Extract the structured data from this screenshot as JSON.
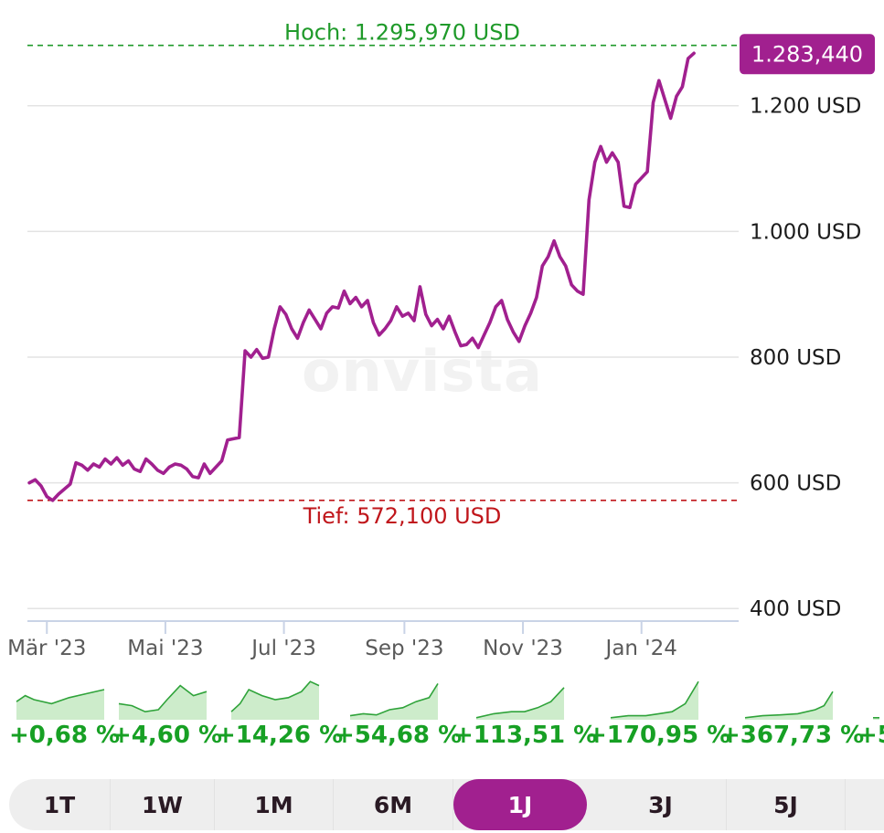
{
  "chart_data": {
    "type": "line",
    "currency": "USD",
    "y_ticks": [
      "400 USD",
      "600 USD",
      "800 USD",
      "1.000 USD",
      "1.200 USD"
    ],
    "y_tick_values": [
      400,
      600,
      800,
      1000,
      1200
    ],
    "ylim": [
      380,
      1310
    ],
    "x_ticks": [
      "Mär '23",
      "Mai '23",
      "Jul '23",
      "Sep '23",
      "Nov '23",
      "Jan '24"
    ],
    "x_tick_dates": [
      "2023-03-01",
      "2023-05-01",
      "2023-07-01",
      "2023-09-01",
      "2023-11-01",
      "2024-01-01"
    ],
    "x_range": [
      "2023-02-19",
      "2024-02-20"
    ],
    "high_label": "Hoch: 1.295,970 USD",
    "high_value": 1295.97,
    "low_label": "Tief: 572,100 USD",
    "low_value": 572.1,
    "last_label": "1.283,440",
    "last_value": 1283.44,
    "watermark": "onvista",
    "line_color": "#a1208f",
    "high_color": "#1f9a2a",
    "low_color": "#c0161b",
    "points": [
      [
        "2023-02-20",
        600
      ],
      [
        "2023-02-23",
        605
      ],
      [
        "2023-02-26",
        595
      ],
      [
        "2023-03-01",
        578
      ],
      [
        "2023-03-04",
        572
      ],
      [
        "2023-03-07",
        582
      ],
      [
        "2023-03-10",
        590
      ],
      [
        "2023-03-13",
        598
      ],
      [
        "2023-03-16",
        632
      ],
      [
        "2023-03-19",
        628
      ],
      [
        "2023-03-22",
        620
      ],
      [
        "2023-03-25",
        630
      ],
      [
        "2023-03-28",
        625
      ],
      [
        "2023-03-31",
        638
      ],
      [
        "2023-04-03",
        630
      ],
      [
        "2023-04-06",
        640
      ],
      [
        "2023-04-09",
        628
      ],
      [
        "2023-04-12",
        635
      ],
      [
        "2023-04-15",
        622
      ],
      [
        "2023-04-18",
        618
      ],
      [
        "2023-04-21",
        638
      ],
      [
        "2023-04-24",
        630
      ],
      [
        "2023-04-27",
        620
      ],
      [
        "2023-04-30",
        615
      ],
      [
        "2023-05-03",
        625
      ],
      [
        "2023-05-06",
        630
      ],
      [
        "2023-05-09",
        628
      ],
      [
        "2023-05-12",
        622
      ],
      [
        "2023-05-15",
        610
      ],
      [
        "2023-05-18",
        608
      ],
      [
        "2023-05-21",
        630
      ],
      [
        "2023-05-24",
        615
      ],
      [
        "2023-05-27",
        625
      ],
      [
        "2023-05-30",
        635
      ],
      [
        "2023-06-02",
        668
      ],
      [
        "2023-06-05",
        670
      ],
      [
        "2023-06-08",
        672
      ],
      [
        "2023-06-11",
        810
      ],
      [
        "2023-06-14",
        800
      ],
      [
        "2023-06-17",
        812
      ],
      [
        "2023-06-20",
        798
      ],
      [
        "2023-06-23",
        800
      ],
      [
        "2023-06-26",
        845
      ],
      [
        "2023-06-29",
        880
      ],
      [
        "2023-07-02",
        868
      ],
      [
        "2023-07-05",
        845
      ],
      [
        "2023-07-08",
        830
      ],
      [
        "2023-07-11",
        855
      ],
      [
        "2023-07-14",
        875
      ],
      [
        "2023-07-17",
        860
      ],
      [
        "2023-07-20",
        845
      ],
      [
        "2023-07-23",
        870
      ],
      [
        "2023-07-26",
        880
      ],
      [
        "2023-07-29",
        878
      ],
      [
        "2023-08-01",
        905
      ],
      [
        "2023-08-04",
        885
      ],
      [
        "2023-08-07",
        895
      ],
      [
        "2023-08-10",
        880
      ],
      [
        "2023-08-13",
        890
      ],
      [
        "2023-08-16",
        855
      ],
      [
        "2023-08-19",
        835
      ],
      [
        "2023-08-22",
        845
      ],
      [
        "2023-08-25",
        858
      ],
      [
        "2023-08-28",
        880
      ],
      [
        "2023-08-31",
        865
      ],
      [
        "2023-09-03",
        870
      ],
      [
        "2023-09-06",
        858
      ],
      [
        "2023-09-09",
        912
      ],
      [
        "2023-09-12",
        868
      ],
      [
        "2023-09-15",
        850
      ],
      [
        "2023-09-18",
        860
      ],
      [
        "2023-09-21",
        845
      ],
      [
        "2023-09-24",
        865
      ],
      [
        "2023-09-27",
        840
      ],
      [
        "2023-09-30",
        818
      ],
      [
        "2023-10-03",
        820
      ],
      [
        "2023-10-06",
        830
      ],
      [
        "2023-10-09",
        815
      ],
      [
        "2023-10-12",
        835
      ],
      [
        "2023-10-15",
        855
      ],
      [
        "2023-10-18",
        880
      ],
      [
        "2023-10-21",
        890
      ],
      [
        "2023-10-24",
        860
      ],
      [
        "2023-10-27",
        840
      ],
      [
        "2023-10-30",
        825
      ],
      [
        "2023-11-02",
        850
      ],
      [
        "2023-11-05",
        870
      ],
      [
        "2023-11-08",
        895
      ],
      [
        "2023-11-11",
        945
      ],
      [
        "2023-11-14",
        960
      ],
      [
        "2023-11-17",
        985
      ],
      [
        "2023-11-20",
        960
      ],
      [
        "2023-11-23",
        945
      ],
      [
        "2023-11-26",
        915
      ],
      [
        "2023-11-29",
        905
      ],
      [
        "2023-12-02",
        900
      ],
      [
        "2023-12-05",
        1050
      ],
      [
        "2023-12-08",
        1110
      ],
      [
        "2023-12-11",
        1135
      ],
      [
        "2023-12-14",
        1110
      ],
      [
        "2023-12-17",
        1125
      ],
      [
        "2023-12-20",
        1110
      ],
      [
        "2023-12-23",
        1040
      ],
      [
        "2023-12-26",
        1038
      ],
      [
        "2023-12-29",
        1075
      ],
      [
        "2024-01-01",
        1085
      ],
      [
        "2024-01-04",
        1095
      ],
      [
        "2024-01-07",
        1205
      ],
      [
        "2024-01-10",
        1240
      ],
      [
        "2024-01-13",
        1210
      ],
      [
        "2024-01-16",
        1180
      ],
      [
        "2024-01-19",
        1215
      ],
      [
        "2024-01-22",
        1230
      ],
      [
        "2024-01-25",
        1275
      ],
      [
        "2024-01-28",
        1283.44
      ]
    ]
  },
  "performance": [
    {
      "label": "+0,68 %",
      "points": [
        [
          0,
          0.45
        ],
        [
          0.1,
          0.6
        ],
        [
          0.2,
          0.5
        ],
        [
          0.4,
          0.4
        ],
        [
          0.6,
          0.55
        ],
        [
          0.8,
          0.65
        ],
        [
          1,
          0.75
        ]
      ]
    },
    {
      "label": "+4,60 %",
      "points": [
        [
          0,
          0.4
        ],
        [
          0.15,
          0.35
        ],
        [
          0.3,
          0.2
        ],
        [
          0.45,
          0.25
        ],
        [
          0.55,
          0.5
        ],
        [
          0.7,
          0.85
        ],
        [
          0.85,
          0.6
        ],
        [
          1,
          0.7
        ]
      ]
    },
    {
      "label": "+14,26 %",
      "points": [
        [
          0,
          0.2
        ],
        [
          0.1,
          0.4
        ],
        [
          0.2,
          0.75
        ],
        [
          0.35,
          0.6
        ],
        [
          0.5,
          0.5
        ],
        [
          0.65,
          0.55
        ],
        [
          0.8,
          0.7
        ],
        [
          0.9,
          0.95
        ],
        [
          1,
          0.85
        ]
      ]
    },
    {
      "label": "+54,68 %",
      "points": [
        [
          0,
          0.1
        ],
        [
          0.15,
          0.15
        ],
        [
          0.3,
          0.12
        ],
        [
          0.45,
          0.25
        ],
        [
          0.6,
          0.3
        ],
        [
          0.75,
          0.45
        ],
        [
          0.9,
          0.55
        ],
        [
          1,
          0.9
        ]
      ]
    },
    {
      "label": "+113,51 %",
      "points": [
        [
          0,
          0.05
        ],
        [
          0.2,
          0.15
        ],
        [
          0.4,
          0.2
        ],
        [
          0.55,
          0.2
        ],
        [
          0.7,
          0.3
        ],
        [
          0.85,
          0.45
        ],
        [
          1,
          0.8
        ]
      ]
    },
    {
      "label": "+170,95 %",
      "points": [
        [
          0,
          0.05
        ],
        [
          0.2,
          0.1
        ],
        [
          0.4,
          0.1
        ],
        [
          0.55,
          0.15
        ],
        [
          0.7,
          0.2
        ],
        [
          0.85,
          0.4
        ],
        [
          1,
          0.95
        ]
      ]
    },
    {
      "label": "+367,73 %",
      "points": [
        [
          0,
          0.05
        ],
        [
          0.2,
          0.1
        ],
        [
          0.4,
          0.12
        ],
        [
          0.6,
          0.15
        ],
        [
          0.8,
          0.25
        ],
        [
          0.9,
          0.35
        ],
        [
          1,
          0.7
        ]
      ]
    },
    {
      "label": "+5",
      "points": [
        [
          0,
          0.05
        ],
        [
          1,
          0.05
        ]
      ]
    }
  ],
  "range_tabs": [
    {
      "label": "1T",
      "active": false
    },
    {
      "label": "1W",
      "active": false
    },
    {
      "label": "1M",
      "active": false
    },
    {
      "label": "6M",
      "active": false
    },
    {
      "label": "1J",
      "active": true
    },
    {
      "label": "3J",
      "active": false
    },
    {
      "label": "5J",
      "active": false
    }
  ]
}
